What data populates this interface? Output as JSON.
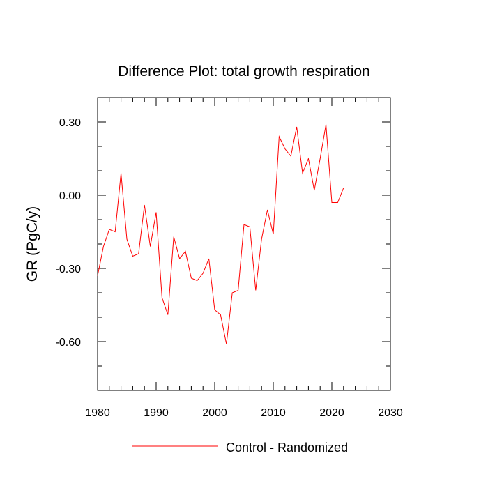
{
  "chart_data": {
    "type": "line",
    "title": "Difference Plot: total growth respiration",
    "xlabel": "",
    "ylabel": "GR  (PgC/y)",
    "xlim": [
      1980,
      2030
    ],
    "ylim": [
      -0.8,
      0.4
    ],
    "x_ticks": [
      1980,
      1990,
      2000,
      2010,
      2020,
      2030
    ],
    "x_tick_labels": [
      "1980",
      "1990",
      "2000",
      "2010",
      "2020",
      "2030"
    ],
    "y_ticks": [
      0.3,
      0.0,
      -0.3,
      -0.6
    ],
    "y_tick_labels": [
      "0.30",
      "0.00",
      "-0.30",
      "-0.60"
    ],
    "grid": false,
    "legend_position": "bottom",
    "series": [
      {
        "name": "Control - Randomized",
        "color": "#ff0000",
        "x": [
          1980,
          1981,
          1982,
          1983,
          1984,
          1985,
          1986,
          1987,
          1988,
          1989,
          1990,
          1991,
          1992,
          1993,
          1994,
          1995,
          1996,
          1997,
          1998,
          1999,
          2000,
          2001,
          2002,
          2003,
          2004,
          2005,
          2006,
          2007,
          2008,
          2009,
          2010,
          2011,
          2012,
          2013,
          2014,
          2015,
          2016,
          2017,
          2018,
          2019,
          2020,
          2021,
          2022
        ],
        "y": [
          -0.33,
          -0.21,
          -0.14,
          -0.15,
          0.09,
          -0.18,
          -0.25,
          -0.24,
          -0.04,
          -0.21,
          -0.07,
          -0.42,
          -0.49,
          -0.17,
          -0.26,
          -0.23,
          -0.34,
          -0.35,
          -0.32,
          -0.26,
          -0.47,
          -0.49,
          -0.61,
          -0.4,
          -0.39,
          -0.12,
          -0.13,
          -0.39,
          -0.18,
          -0.06,
          -0.16,
          0.24,
          0.19,
          0.16,
          0.28,
          0.09,
          0.15,
          0.02,
          0.15,
          0.29,
          -0.03,
          -0.03,
          0.03
        ]
      }
    ]
  }
}
